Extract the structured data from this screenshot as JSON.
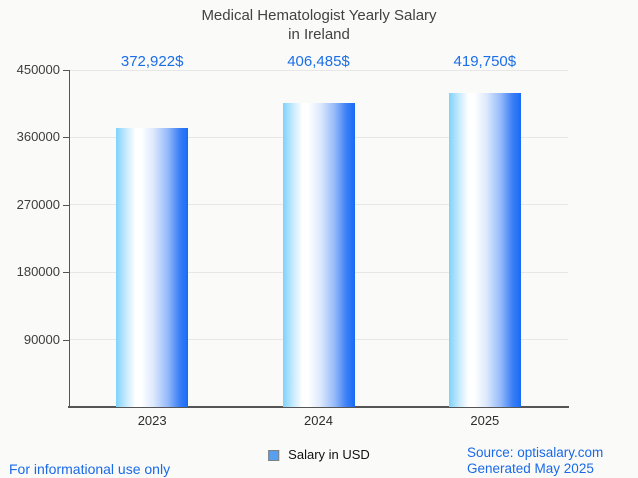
{
  "title": {
    "line1": "Medical Hematologist Yearly Salary",
    "line2": "in Ireland"
  },
  "chart_data": {
    "type": "bar",
    "categories": [
      "2023",
      "2024",
      "2025"
    ],
    "values": [
      372922,
      406485,
      419750
    ],
    "value_labels": [
      "372,922$",
      "406,485$",
      "419,750$"
    ],
    "series": [
      {
        "name": "Salary in USD",
        "values": [
          372922,
          406485,
          419750
        ]
      }
    ],
    "title": "Medical Hematologist Yearly Salary in Ireland",
    "xlabel": "",
    "ylabel": "",
    "ylim": [
      0,
      450000
    ],
    "yticks": [
      90000,
      180000,
      270000,
      360000,
      450000
    ],
    "ytick_labels": [
      "90000",
      "180000",
      "270000",
      "360000",
      "450000"
    ],
    "grid": "horizontal",
    "legend_position": "bottom-center"
  },
  "legend": {
    "label": "Salary in USD"
  },
  "footer": {
    "left": "For informational use only",
    "source": "Source: optisalary.com",
    "generated": "Generated May 2025"
  },
  "colors": {
    "background": "#fafaf8",
    "title_text": "#424242",
    "value_label_blue": "#1a6ee8",
    "footer_blue": "#1a6ae8",
    "axis": "#555555",
    "gridline": "#e7e7e7",
    "bar_gradient_left": "#7fd2fb",
    "bar_gradient_mid": "#ffffff",
    "bar_gradient_right": "#176bf8",
    "legend_marker_fill": "#57a0f0",
    "legend_marker_border": "#7f7f7f"
  }
}
